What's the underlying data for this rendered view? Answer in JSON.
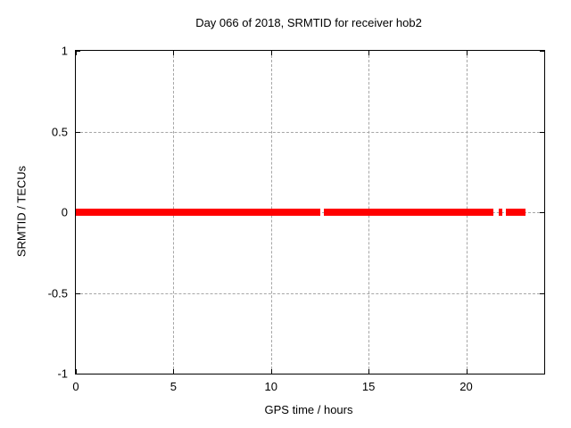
{
  "title": "Day 066 of 2018, SRMTID for receiver hob2",
  "colors": {
    "series": "#ff0000",
    "grid": "#a6a6a6",
    "axis": "#000000",
    "background": "#ffffff"
  },
  "chart_data": {
    "type": "scatter",
    "title": "Day 066 of 2018, SRMTID for receiver hob2",
    "xlabel": "GPS time / hours",
    "ylabel": "SRMTID / TECUs",
    "xlim": [
      0,
      24
    ],
    "ylim": [
      -1,
      1
    ],
    "xticks": [
      0,
      5,
      10,
      15,
      20
    ],
    "yticks": [
      1,
      0.5,
      0,
      -0.5,
      -1
    ],
    "grid": true,
    "legend": "none",
    "series": [
      {
        "name": "SRMTID",
        "color": "#ff0000",
        "marker": "filled-square",
        "y_value": 0,
        "segments_x_hours": [
          [
            0.0,
            12.53
          ],
          [
            12.71,
            21.39
          ],
          [
            21.67,
            21.85
          ],
          [
            22.03,
            23.04
          ]
        ]
      }
    ]
  }
}
